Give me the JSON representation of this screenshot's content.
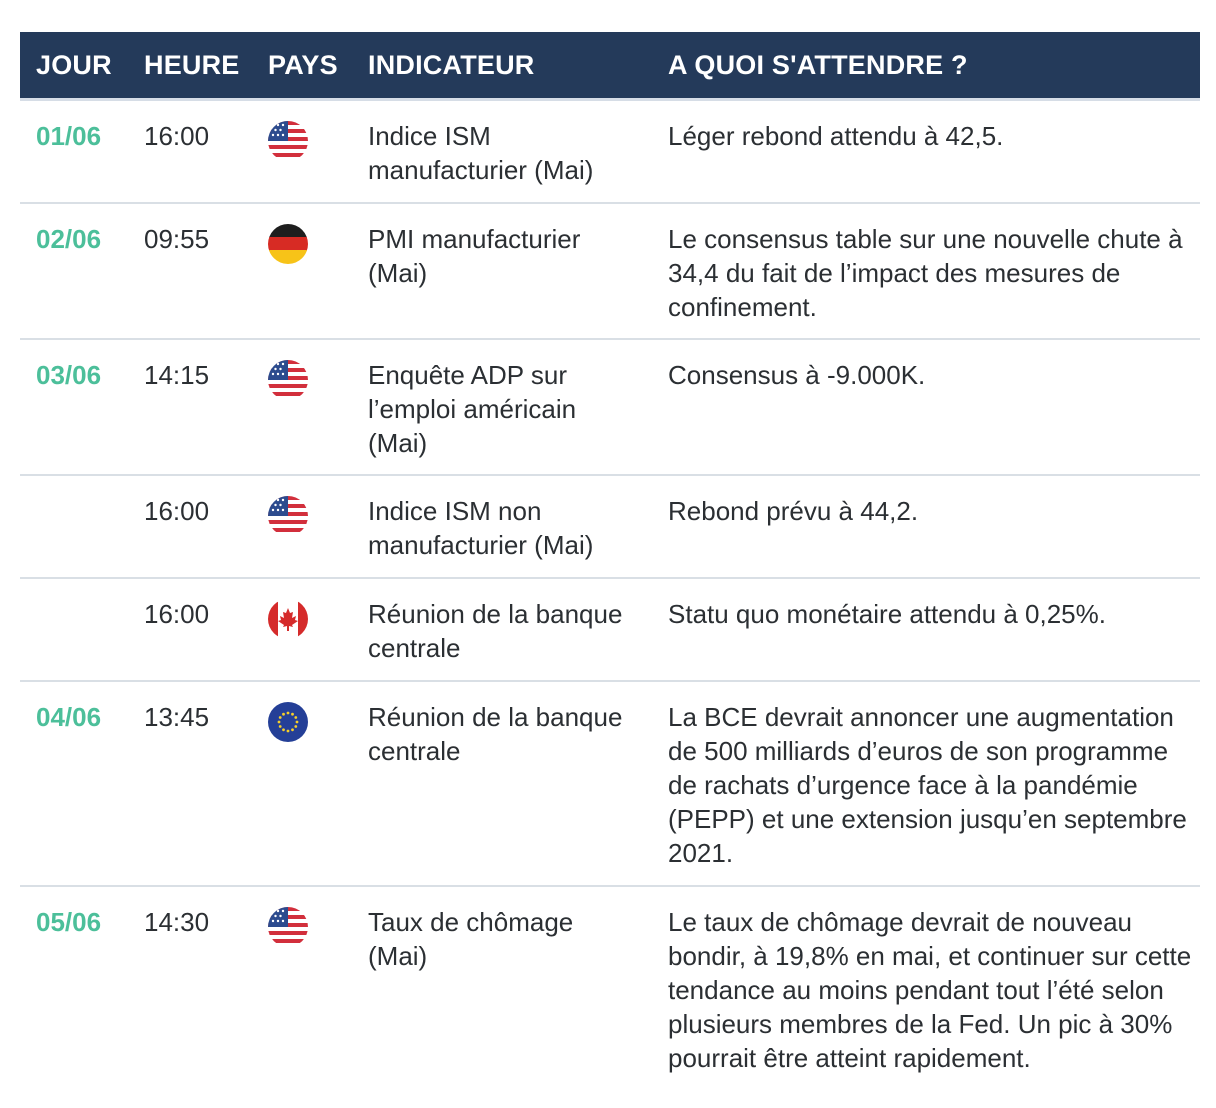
{
  "header": {
    "day": "JOUR",
    "time": "HEURE",
    "country": "PAYS",
    "indicator": "INDICATEUR",
    "expectation": "A QUOI S'ATTENDRE ?"
  },
  "colors": {
    "header_bg": "#243a5a",
    "day_accent": "#4cbf9a",
    "row_divider": "#d9dfe5"
  },
  "rows": [
    {
      "day": "01/06",
      "time": "16:00",
      "flag": "us-flag-icon",
      "indicator": "Indice ISM manufacturier (Mai)",
      "expectation": "Léger rebond attendu à 42,5."
    },
    {
      "day": "02/06",
      "time": "09:55",
      "flag": "germany-flag-icon",
      "indicator": "PMI manufacturier (Mai)",
      "expectation": "Le consensus table sur une nouvelle chute à 34,4 du fait de l’impact des mesures de confinement."
    },
    {
      "day": "03/06",
      "time": "14:15",
      "flag": "us-flag-icon",
      "indicator": "Enquête ADP sur l’emploi américain (Mai)",
      "expectation": "Consensus à -9.000K."
    },
    {
      "day": "",
      "time": "16:00",
      "flag": "us-flag-icon",
      "indicator": "Indice ISM non manufacturier (Mai)",
      "expectation": "Rebond prévu à 44,2."
    },
    {
      "day": "",
      "time": "16:00",
      "flag": "canada-flag-icon",
      "indicator": "Réunion de la banque centrale",
      "expectation": "Statu quo monétaire attendu à 0,25%."
    },
    {
      "day": "04/06",
      "time": "13:45",
      "flag": "eu-flag-icon",
      "indicator": "Réunion de la banque centrale",
      "expectation": "La BCE devrait annoncer une augmentation de 500 milliards d’euros de son programme de rachats d’urgence face à la pandémie (PEPP) et une extension jusqu’en septembre 2021."
    },
    {
      "day": "05/06",
      "time": "14:30",
      "flag": "us-flag-icon",
      "indicator": "Taux de chômage (Mai)",
      "expectation": "Le taux de chômage devrait de nouveau bondir, à 19,8% en mai, et continuer sur cette tendance au moins pendant tout l’été selon plusieurs membres de la Fed. Un pic à 30% pourrait être atteint rapidement."
    }
  ]
}
